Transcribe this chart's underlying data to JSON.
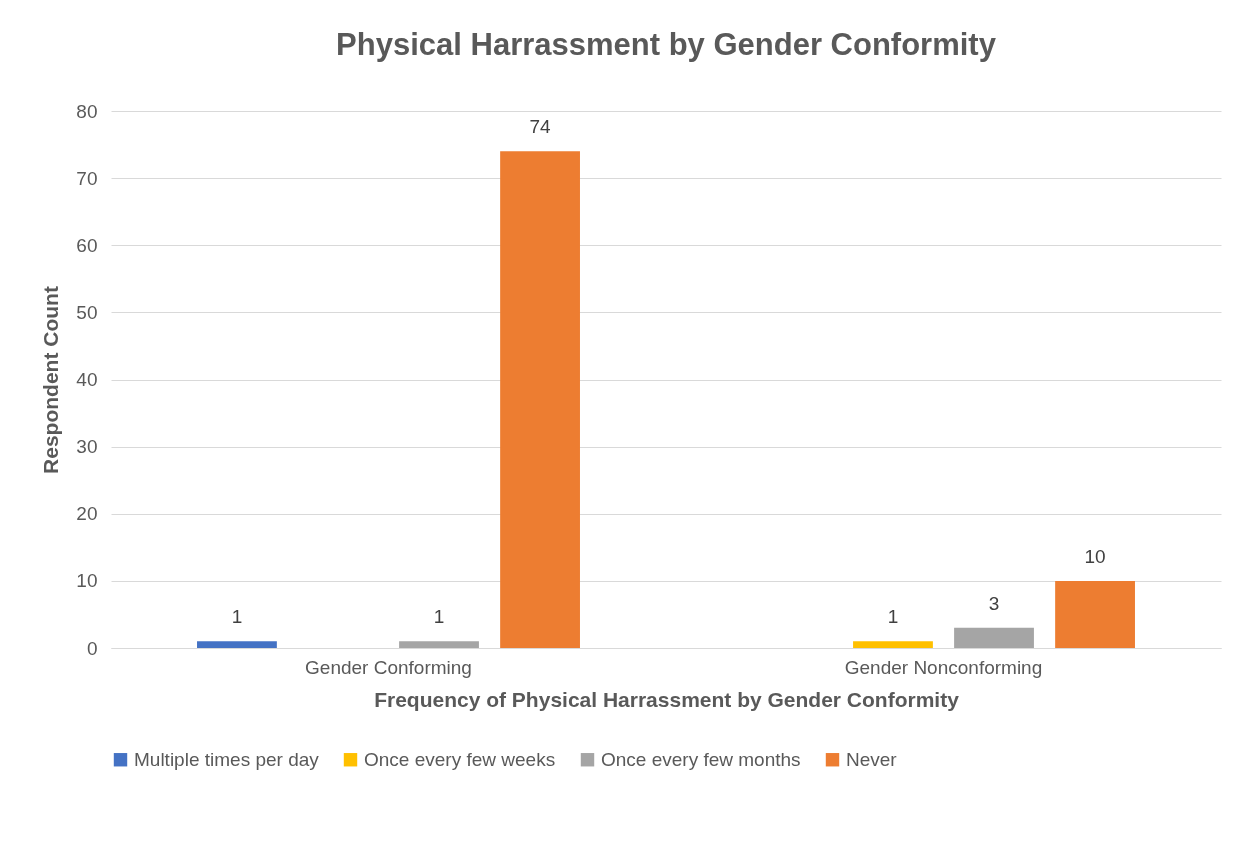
{
  "chart_data": {
    "type": "bar",
    "title": "Physical Harrassment by Gender Conformity",
    "xlabel": "Frequency of Physical Harrassment by Gender Conformity",
    "ylabel": "Respondent Count",
    "categories": [
      "Gender Conforming",
      "Gender Nonconforming"
    ],
    "series": [
      {
        "name": "Multiple times per day",
        "color": "#4472c4",
        "values": [
          1,
          null
        ]
      },
      {
        "name": "Once every few weeks",
        "color": "#ffc000",
        "values": [
          null,
          1
        ]
      },
      {
        "name": "Once every few months",
        "color": "#a5a5a5",
        "values": [
          1,
          3
        ]
      },
      {
        "name": "Never",
        "color": "#ed7d31",
        "values": [
          74,
          10
        ]
      }
    ],
    "ylim": [
      0,
      80
    ],
    "yticks": [
      0,
      10,
      20,
      30,
      40,
      50,
      60,
      70,
      80
    ],
    "grid": "y",
    "legend": "bottom",
    "data_labels": true
  }
}
